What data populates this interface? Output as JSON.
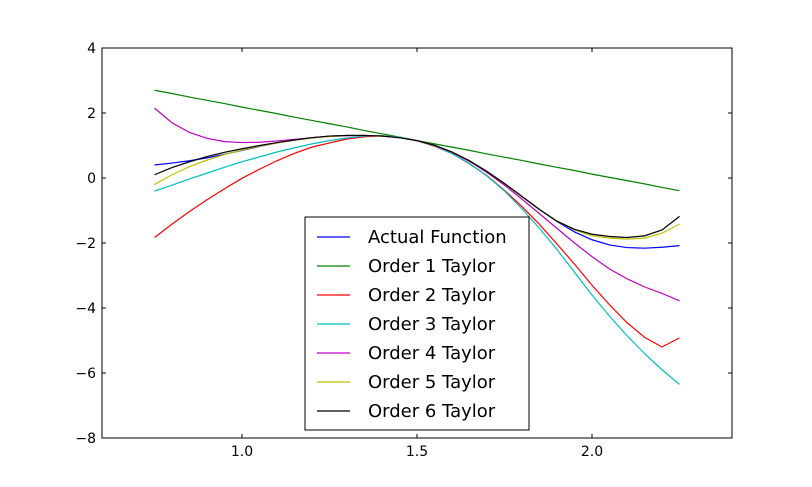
{
  "chart_data": {
    "type": "line",
    "xlim": [
      0.6,
      2.4
    ],
    "ylim": [
      -8,
      4
    ],
    "x_ticks": [
      "1.0",
      "1.5",
      "2.0"
    ],
    "y_ticks": [
      "−8",
      "−6",
      "−4",
      "−2",
      "0",
      "2",
      "4"
    ],
    "x_tick_values": [
      1.0,
      1.5,
      2.0
    ],
    "y_tick_values": [
      -8,
      -6,
      -4,
      -2,
      0,
      2,
      4
    ],
    "grid": false,
    "legend_position": "lower-center",
    "x": [
      0.75,
      0.8,
      0.85,
      0.9,
      0.95,
      1.0,
      1.05,
      1.1,
      1.15,
      1.2,
      1.25,
      1.3,
      1.35,
      1.4,
      1.45,
      1.5,
      1.55,
      1.6,
      1.65,
      1.7,
      1.75,
      1.8,
      1.85,
      1.9,
      1.95,
      2.0,
      2.05,
      2.1,
      2.15,
      2.2,
      2.25
    ],
    "series": [
      {
        "name": "Actual Function",
        "color": "#0000ff",
        "values": [
          0.4,
          0.46,
          0.53,
          0.62,
          0.73,
          0.85,
          0.97,
          1.08,
          1.17,
          1.24,
          1.29,
          1.31,
          1.31,
          1.29,
          1.24,
          1.15,
          1.01,
          0.8,
          0.53,
          0.2,
          -0.17,
          -0.57,
          -0.97,
          -1.34,
          -1.66,
          -1.9,
          -2.06,
          -2.14,
          -2.16,
          -2.13,
          -2.08
        ]
      },
      {
        "name": "Order 1 Taylor",
        "color": "#008000",
        "values": [
          2.7,
          2.6,
          2.49,
          2.39,
          2.29,
          2.18,
          2.08,
          1.98,
          1.87,
          1.77,
          1.67,
          1.57,
          1.46,
          1.36,
          1.26,
          1.15,
          1.05,
          0.95,
          0.85,
          0.74,
          0.64,
          0.54,
          0.43,
          0.33,
          0.23,
          0.12,
          0.02,
          -0.08,
          -0.18,
          -0.29,
          -0.39
        ]
      },
      {
        "name": "Order 2 Taylor",
        "color": "#ff0000",
        "values": [
          -1.83,
          -1.42,
          -1.03,
          -0.67,
          -0.33,
          -0.01,
          0.27,
          0.53,
          0.76,
          0.95,
          1.08,
          1.2,
          1.27,
          1.3,
          1.25,
          1.15,
          0.98,
          0.75,
          0.44,
          0.07,
          -0.38,
          -0.88,
          -1.43,
          -2.03,
          -2.65,
          -3.3,
          -3.9,
          -4.45,
          -4.9,
          -5.2,
          -4.92
        ]
      },
      {
        "name": "Order 3 Taylor",
        "color": "#00bfbf",
        "values": [
          -0.4,
          -0.22,
          -0.03,
          0.15,
          0.33,
          0.5,
          0.65,
          0.8,
          0.93,
          1.05,
          1.15,
          1.23,
          1.29,
          1.3,
          1.26,
          1.15,
          0.99,
          0.75,
          0.45,
          0.06,
          -0.4,
          -0.95,
          -1.55,
          -2.2,
          -2.9,
          -3.6,
          -4.25,
          -4.85,
          -5.4,
          -5.9,
          -6.35
        ]
      },
      {
        "name": "Order 4 Taylor",
        "color": "#bf00bf",
        "values": [
          2.15,
          1.7,
          1.4,
          1.22,
          1.12,
          1.09,
          1.1,
          1.14,
          1.19,
          1.24,
          1.28,
          1.3,
          1.31,
          1.29,
          1.24,
          1.15,
          1.0,
          0.79,
          0.51,
          0.17,
          -0.22,
          -0.65,
          -1.1,
          -1.55,
          -2.0,
          -2.42,
          -2.8,
          -3.1,
          -3.35,
          -3.55,
          -3.78
        ]
      },
      {
        "name": "Order 5 Taylor",
        "color": "#bfbf00",
        "values": [
          -0.2,
          0.1,
          0.35,
          0.55,
          0.72,
          0.86,
          0.98,
          1.08,
          1.16,
          1.23,
          1.28,
          1.31,
          1.31,
          1.29,
          1.24,
          1.15,
          1.01,
          0.8,
          0.53,
          0.2,
          -0.17,
          -0.57,
          -0.97,
          -1.33,
          -1.6,
          -1.78,
          -1.85,
          -1.88,
          -1.85,
          -1.7,
          -1.42
        ]
      },
      {
        "name": "Order 6 Taylor",
        "color": "#000000",
        "values": [
          0.1,
          0.32,
          0.5,
          0.66,
          0.79,
          0.9,
          1.0,
          1.09,
          1.17,
          1.24,
          1.29,
          1.31,
          1.31,
          1.29,
          1.24,
          1.15,
          1.01,
          0.8,
          0.53,
          0.2,
          -0.17,
          -0.57,
          -0.97,
          -1.33,
          -1.58,
          -1.73,
          -1.8,
          -1.83,
          -1.78,
          -1.6,
          -1.18
        ]
      }
    ]
  }
}
